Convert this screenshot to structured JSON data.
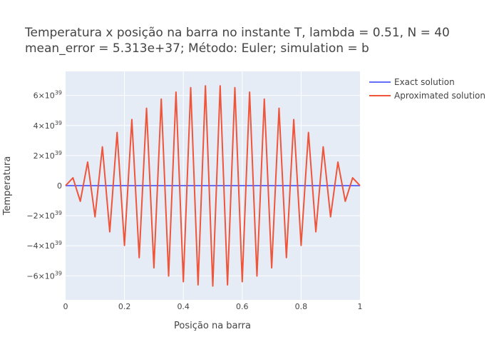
{
  "title_line1": "Temperatura x posição na barra no instante T, lambda = 0.51, N = 40",
  "title_line2": "mean_error = 5.313e+37; Método: Euler; simulation = b",
  "chart_data": {
    "type": "line",
    "xlabel": "Posição na barra",
    "ylabel": "Temperatura",
    "xlim": [
      0,
      1
    ],
    "ylim": [
      -7.6e+39,
      7.6e+39
    ],
    "grid": true,
    "legend_position": "top-right (outside plot)",
    "x_ticks": [
      0,
      0.2,
      0.4,
      0.6,
      0.8,
      1
    ],
    "x_tick_labels": [
      "0",
      "0.2",
      "0.4",
      "0.6",
      "0.8",
      "1"
    ],
    "y_ticks": [
      -6e+39,
      -4e+39,
      -2e+39,
      0,
      2e+39,
      4e+39,
      6e+39
    ],
    "y_tick_labels": [
      {
        "mantissa": "−6×10",
        "exp": "39"
      },
      {
        "mantissa": "−4×10",
        "exp": "39"
      },
      {
        "mantissa": "−2×10",
        "exp": "39"
      },
      {
        "mantissa": "0",
        "exp": ""
      },
      {
        "mantissa": "2×10",
        "exp": "39"
      },
      {
        "mantissa": "4×10",
        "exp": "39"
      },
      {
        "mantissa": "6×10",
        "exp": "39"
      }
    ],
    "x": [
      0,
      0.025,
      0.05,
      0.075,
      0.1,
      0.125,
      0.15,
      0.175,
      0.2,
      0.225,
      0.25,
      0.275,
      0.3,
      0.325,
      0.35,
      0.375,
      0.4,
      0.425,
      0.45,
      0.475,
      0.5,
      0.525,
      0.55,
      0.575,
      0.6,
      0.625,
      0.65,
      0.675,
      0.7,
      0.725,
      0.75,
      0.775,
      0.8,
      0.825,
      0.85,
      0.875,
      0.9,
      0.925,
      0.95,
      0.975,
      1
    ],
    "series": [
      {
        "name": "Exact solution",
        "color": "#636efa",
        "values": [
          0,
          0,
          0,
          0,
          0,
          0,
          0,
          0,
          0,
          0,
          0,
          0,
          0,
          0,
          0,
          0,
          0,
          0,
          0,
          0,
          0,
          0,
          0,
          0,
          0,
          0,
          0,
          0,
          0,
          0,
          0,
          0,
          0,
          0,
          0,
          0,
          0,
          0,
          0,
          0,
          0
        ]
      },
      {
        "name": "Aproximated solution",
        "color": "#ef553b",
        "values": [
          0,
          5.2e+38,
          -1.04e+39,
          1.57e+39,
          -2.08e+39,
          2.58e+39,
          -3.07e+39,
          3.54e+39,
          -3.98e+39,
          4.4e+39,
          -4.79e+39,
          5.15e+39,
          -5.47e+39,
          5.76e+39,
          -6.01e+39,
          6.22e+39,
          -6.39e+39,
          6.52e+39,
          -6.6e+39,
          6.64e+39,
          -6.68e+39,
          6.64e+39,
          -6.6e+39,
          6.52e+39,
          -6.39e+39,
          6.22e+39,
          -6.01e+39,
          5.76e+39,
          -5.47e+39,
          5.15e+39,
          -4.79e+39,
          4.4e+39,
          -3.98e+39,
          3.54e+39,
          -3.07e+39,
          2.58e+39,
          -2.08e+39,
          1.57e+39,
          -1.04e+39,
          5.2e+38,
          0
        ]
      }
    ]
  }
}
